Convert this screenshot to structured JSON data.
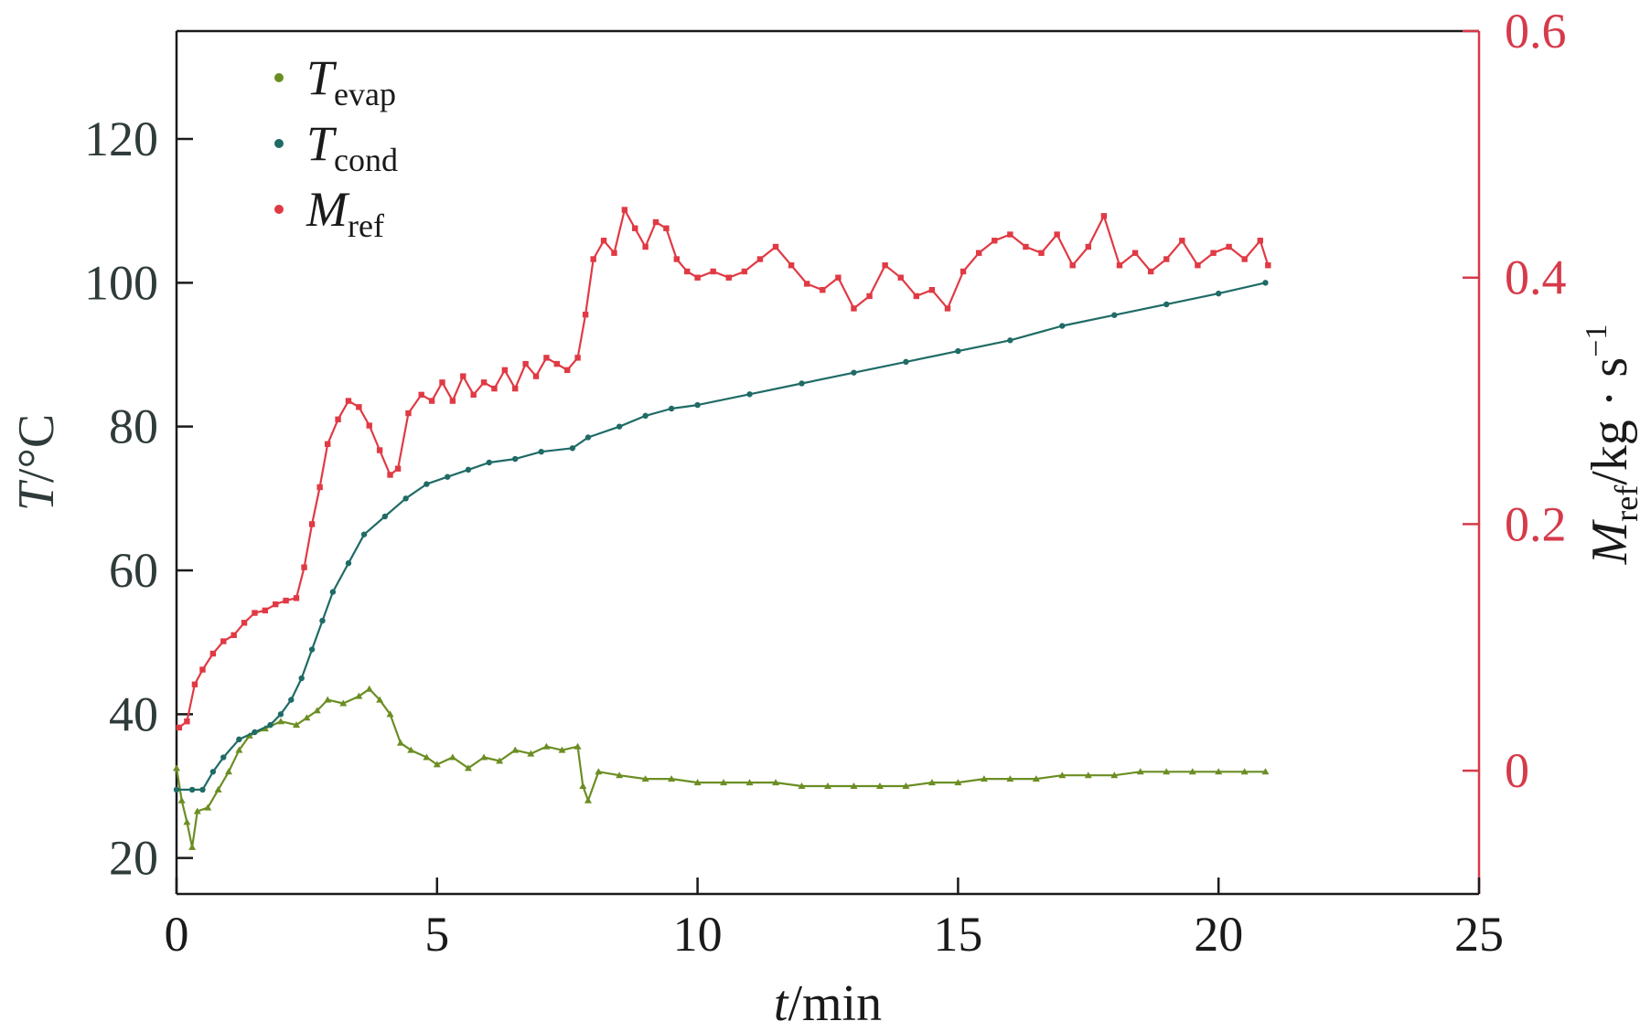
{
  "chart_data": {
    "type": "line",
    "x_axis": {
      "label_var": "t",
      "label_unit": "/min",
      "range": [
        0,
        25
      ],
      "ticks": [
        0,
        5,
        10,
        15,
        20,
        25
      ],
      "tick_labels": [
        "0",
        "5",
        "10",
        "15",
        "20",
        "25"
      ]
    },
    "y_axis_left": {
      "label_var": "T",
      "label_unit": "/°C",
      "range": [
        15,
        135
      ],
      "ticks": [
        20,
        40,
        60,
        80,
        100,
        120
      ],
      "tick_labels": [
        "20",
        "40",
        "60",
        "80",
        "100",
        "120"
      ]
    },
    "y_axis_right": {
      "label_var": "M",
      "label_sub": "ref",
      "label_unit": "/kg · s",
      "label_sup": "−1",
      "range": [
        -0.1,
        0.6
      ],
      "ticks": [
        0,
        0.2,
        0.4,
        0.6
      ],
      "tick_labels": [
        "0",
        "0.2",
        "0.4",
        "0.6"
      ]
    },
    "grid": false,
    "legend_position": "top-left",
    "series": [
      {
        "name": "T",
        "name_sub": "evap",
        "axis": "left",
        "color": "#6b8e23",
        "marker": "triangle",
        "points": [
          [
            0.0,
            32.5
          ],
          [
            0.1,
            28.0
          ],
          [
            0.2,
            25.0
          ],
          [
            0.3,
            21.5
          ],
          [
            0.4,
            26.5
          ],
          [
            0.6,
            27.0
          ],
          [
            0.8,
            29.5
          ],
          [
            1.0,
            32.0
          ],
          [
            1.2,
            35.0
          ],
          [
            1.4,
            37.0
          ],
          [
            1.7,
            38.0
          ],
          [
            2.0,
            39.0
          ],
          [
            2.3,
            38.5
          ],
          [
            2.5,
            39.5
          ],
          [
            2.7,
            40.5
          ],
          [
            2.9,
            42.0
          ],
          [
            3.2,
            41.5
          ],
          [
            3.5,
            42.5
          ],
          [
            3.7,
            43.5
          ],
          [
            3.9,
            42.0
          ],
          [
            4.1,
            40.0
          ],
          [
            4.3,
            36.0
          ],
          [
            4.5,
            35.0
          ],
          [
            4.8,
            34.0
          ],
          [
            5.0,
            33.0
          ],
          [
            5.3,
            34.0
          ],
          [
            5.6,
            32.5
          ],
          [
            5.9,
            34.0
          ],
          [
            6.2,
            33.5
          ],
          [
            6.5,
            35.0
          ],
          [
            6.8,
            34.5
          ],
          [
            7.1,
            35.5
          ],
          [
            7.4,
            35.0
          ],
          [
            7.7,
            35.5
          ],
          [
            7.8,
            30.0
          ],
          [
            7.9,
            28.0
          ],
          [
            8.1,
            32.0
          ],
          [
            8.5,
            31.5
          ],
          [
            9.0,
            31.0
          ],
          [
            9.5,
            31.0
          ],
          [
            10.0,
            30.5
          ],
          [
            10.5,
            30.5
          ],
          [
            11.0,
            30.5
          ],
          [
            11.5,
            30.5
          ],
          [
            12.0,
            30.0
          ],
          [
            12.5,
            30.0
          ],
          [
            13.0,
            30.0
          ],
          [
            13.5,
            30.0
          ],
          [
            14.0,
            30.0
          ],
          [
            14.5,
            30.5
          ],
          [
            15.0,
            30.5
          ],
          [
            15.5,
            31.0
          ],
          [
            16.0,
            31.0
          ],
          [
            16.5,
            31.0
          ],
          [
            17.0,
            31.5
          ],
          [
            17.5,
            31.5
          ],
          [
            18.0,
            31.5
          ],
          [
            18.5,
            32.0
          ],
          [
            19.0,
            32.0
          ],
          [
            19.5,
            32.0
          ],
          [
            20.0,
            32.0
          ],
          [
            20.5,
            32.0
          ],
          [
            20.9,
            32.0
          ]
        ]
      },
      {
        "name": "T",
        "name_sub": "cond",
        "axis": "left",
        "color": "#1f6b66",
        "marker": "circle",
        "points": [
          [
            0.0,
            29.5
          ],
          [
            0.3,
            29.5
          ],
          [
            0.5,
            29.5
          ],
          [
            0.7,
            32.0
          ],
          [
            0.9,
            34.0
          ],
          [
            1.2,
            36.5
          ],
          [
            1.5,
            37.5
          ],
          [
            1.8,
            38.5
          ],
          [
            2.0,
            40.0
          ],
          [
            2.2,
            42.0
          ],
          [
            2.4,
            45.0
          ],
          [
            2.6,
            49.0
          ],
          [
            2.8,
            53.0
          ],
          [
            3.0,
            57.0
          ],
          [
            3.3,
            61.0
          ],
          [
            3.6,
            65.0
          ],
          [
            4.0,
            67.5
          ],
          [
            4.4,
            70.0
          ],
          [
            4.8,
            72.0
          ],
          [
            5.2,
            73.0
          ],
          [
            5.6,
            74.0
          ],
          [
            6.0,
            75.0
          ],
          [
            6.5,
            75.5
          ],
          [
            7.0,
            76.5
          ],
          [
            7.6,
            77.0
          ],
          [
            7.9,
            78.5
          ],
          [
            8.5,
            80.0
          ],
          [
            9.0,
            81.5
          ],
          [
            9.5,
            82.5
          ],
          [
            10.0,
            83.0
          ],
          [
            11.0,
            84.5
          ],
          [
            12.0,
            86.0
          ],
          [
            13.0,
            87.5
          ],
          [
            14.0,
            89.0
          ],
          [
            15.0,
            90.5
          ],
          [
            16.0,
            92.0
          ],
          [
            17.0,
            94.0
          ],
          [
            18.0,
            95.5
          ],
          [
            19.0,
            97.0
          ],
          [
            20.0,
            98.5
          ],
          [
            20.9,
            100.0
          ]
        ]
      },
      {
        "name": "M",
        "name_sub": "ref",
        "axis": "right",
        "color": "#e03a44",
        "marker": "square",
        "points": [
          [
            0.05,
            0.035
          ],
          [
            0.2,
            0.04
          ],
          [
            0.35,
            0.07
          ],
          [
            0.5,
            0.082
          ],
          [
            0.7,
            0.095
          ],
          [
            0.9,
            0.105
          ],
          [
            1.1,
            0.11
          ],
          [
            1.3,
            0.12
          ],
          [
            1.5,
            0.128
          ],
          [
            1.7,
            0.13
          ],
          [
            1.9,
            0.135
          ],
          [
            2.1,
            0.138
          ],
          [
            2.3,
            0.14
          ],
          [
            2.45,
            0.165
          ],
          [
            2.6,
            0.2
          ],
          [
            2.75,
            0.23
          ],
          [
            2.9,
            0.265
          ],
          [
            3.1,
            0.285
          ],
          [
            3.3,
            0.3
          ],
          [
            3.5,
            0.295
          ],
          [
            3.7,
            0.28
          ],
          [
            3.9,
            0.26
          ],
          [
            4.1,
            0.24
          ],
          [
            4.25,
            0.245
          ],
          [
            4.45,
            0.29
          ],
          [
            4.7,
            0.305
          ],
          [
            4.9,
            0.3
          ],
          [
            5.1,
            0.315
          ],
          [
            5.3,
            0.3
          ],
          [
            5.5,
            0.32
          ],
          [
            5.7,
            0.305
          ],
          [
            5.9,
            0.315
          ],
          [
            6.1,
            0.31
          ],
          [
            6.3,
            0.325
          ],
          [
            6.5,
            0.31
          ],
          [
            6.7,
            0.33
          ],
          [
            6.9,
            0.32
          ],
          [
            7.1,
            0.335
          ],
          [
            7.3,
            0.33
          ],
          [
            7.5,
            0.325
          ],
          [
            7.7,
            0.335
          ],
          [
            7.85,
            0.37
          ],
          [
            8.0,
            0.415
          ],
          [
            8.2,
            0.43
          ],
          [
            8.4,
            0.42
          ],
          [
            8.6,
            0.455
          ],
          [
            8.8,
            0.44
          ],
          [
            9.0,
            0.425
          ],
          [
            9.2,
            0.445
          ],
          [
            9.4,
            0.44
          ],
          [
            9.6,
            0.415
          ],
          [
            9.8,
            0.405
          ],
          [
            10.0,
            0.4
          ],
          [
            10.3,
            0.405
          ],
          [
            10.6,
            0.4
          ],
          [
            10.9,
            0.405
          ],
          [
            11.2,
            0.415
          ],
          [
            11.5,
            0.425
          ],
          [
            11.8,
            0.41
          ],
          [
            12.1,
            0.395
          ],
          [
            12.4,
            0.39
          ],
          [
            12.7,
            0.4
          ],
          [
            13.0,
            0.375
          ],
          [
            13.3,
            0.385
          ],
          [
            13.6,
            0.41
          ],
          [
            13.9,
            0.4
          ],
          [
            14.2,
            0.385
          ],
          [
            14.5,
            0.39
          ],
          [
            14.8,
            0.375
          ],
          [
            15.1,
            0.405
          ],
          [
            15.4,
            0.42
          ],
          [
            15.7,
            0.43
          ],
          [
            16.0,
            0.435
          ],
          [
            16.3,
            0.425
          ],
          [
            16.6,
            0.42
          ],
          [
            16.9,
            0.435
          ],
          [
            17.2,
            0.41
          ],
          [
            17.5,
            0.425
          ],
          [
            17.8,
            0.45
          ],
          [
            18.1,
            0.41
          ],
          [
            18.4,
            0.42
          ],
          [
            18.7,
            0.405
          ],
          [
            19.0,
            0.415
          ],
          [
            19.3,
            0.43
          ],
          [
            19.6,
            0.41
          ],
          [
            19.9,
            0.42
          ],
          [
            20.2,
            0.425
          ],
          [
            20.5,
            0.415
          ],
          [
            20.8,
            0.43
          ],
          [
            20.95,
            0.41
          ]
        ]
      }
    ]
  }
}
